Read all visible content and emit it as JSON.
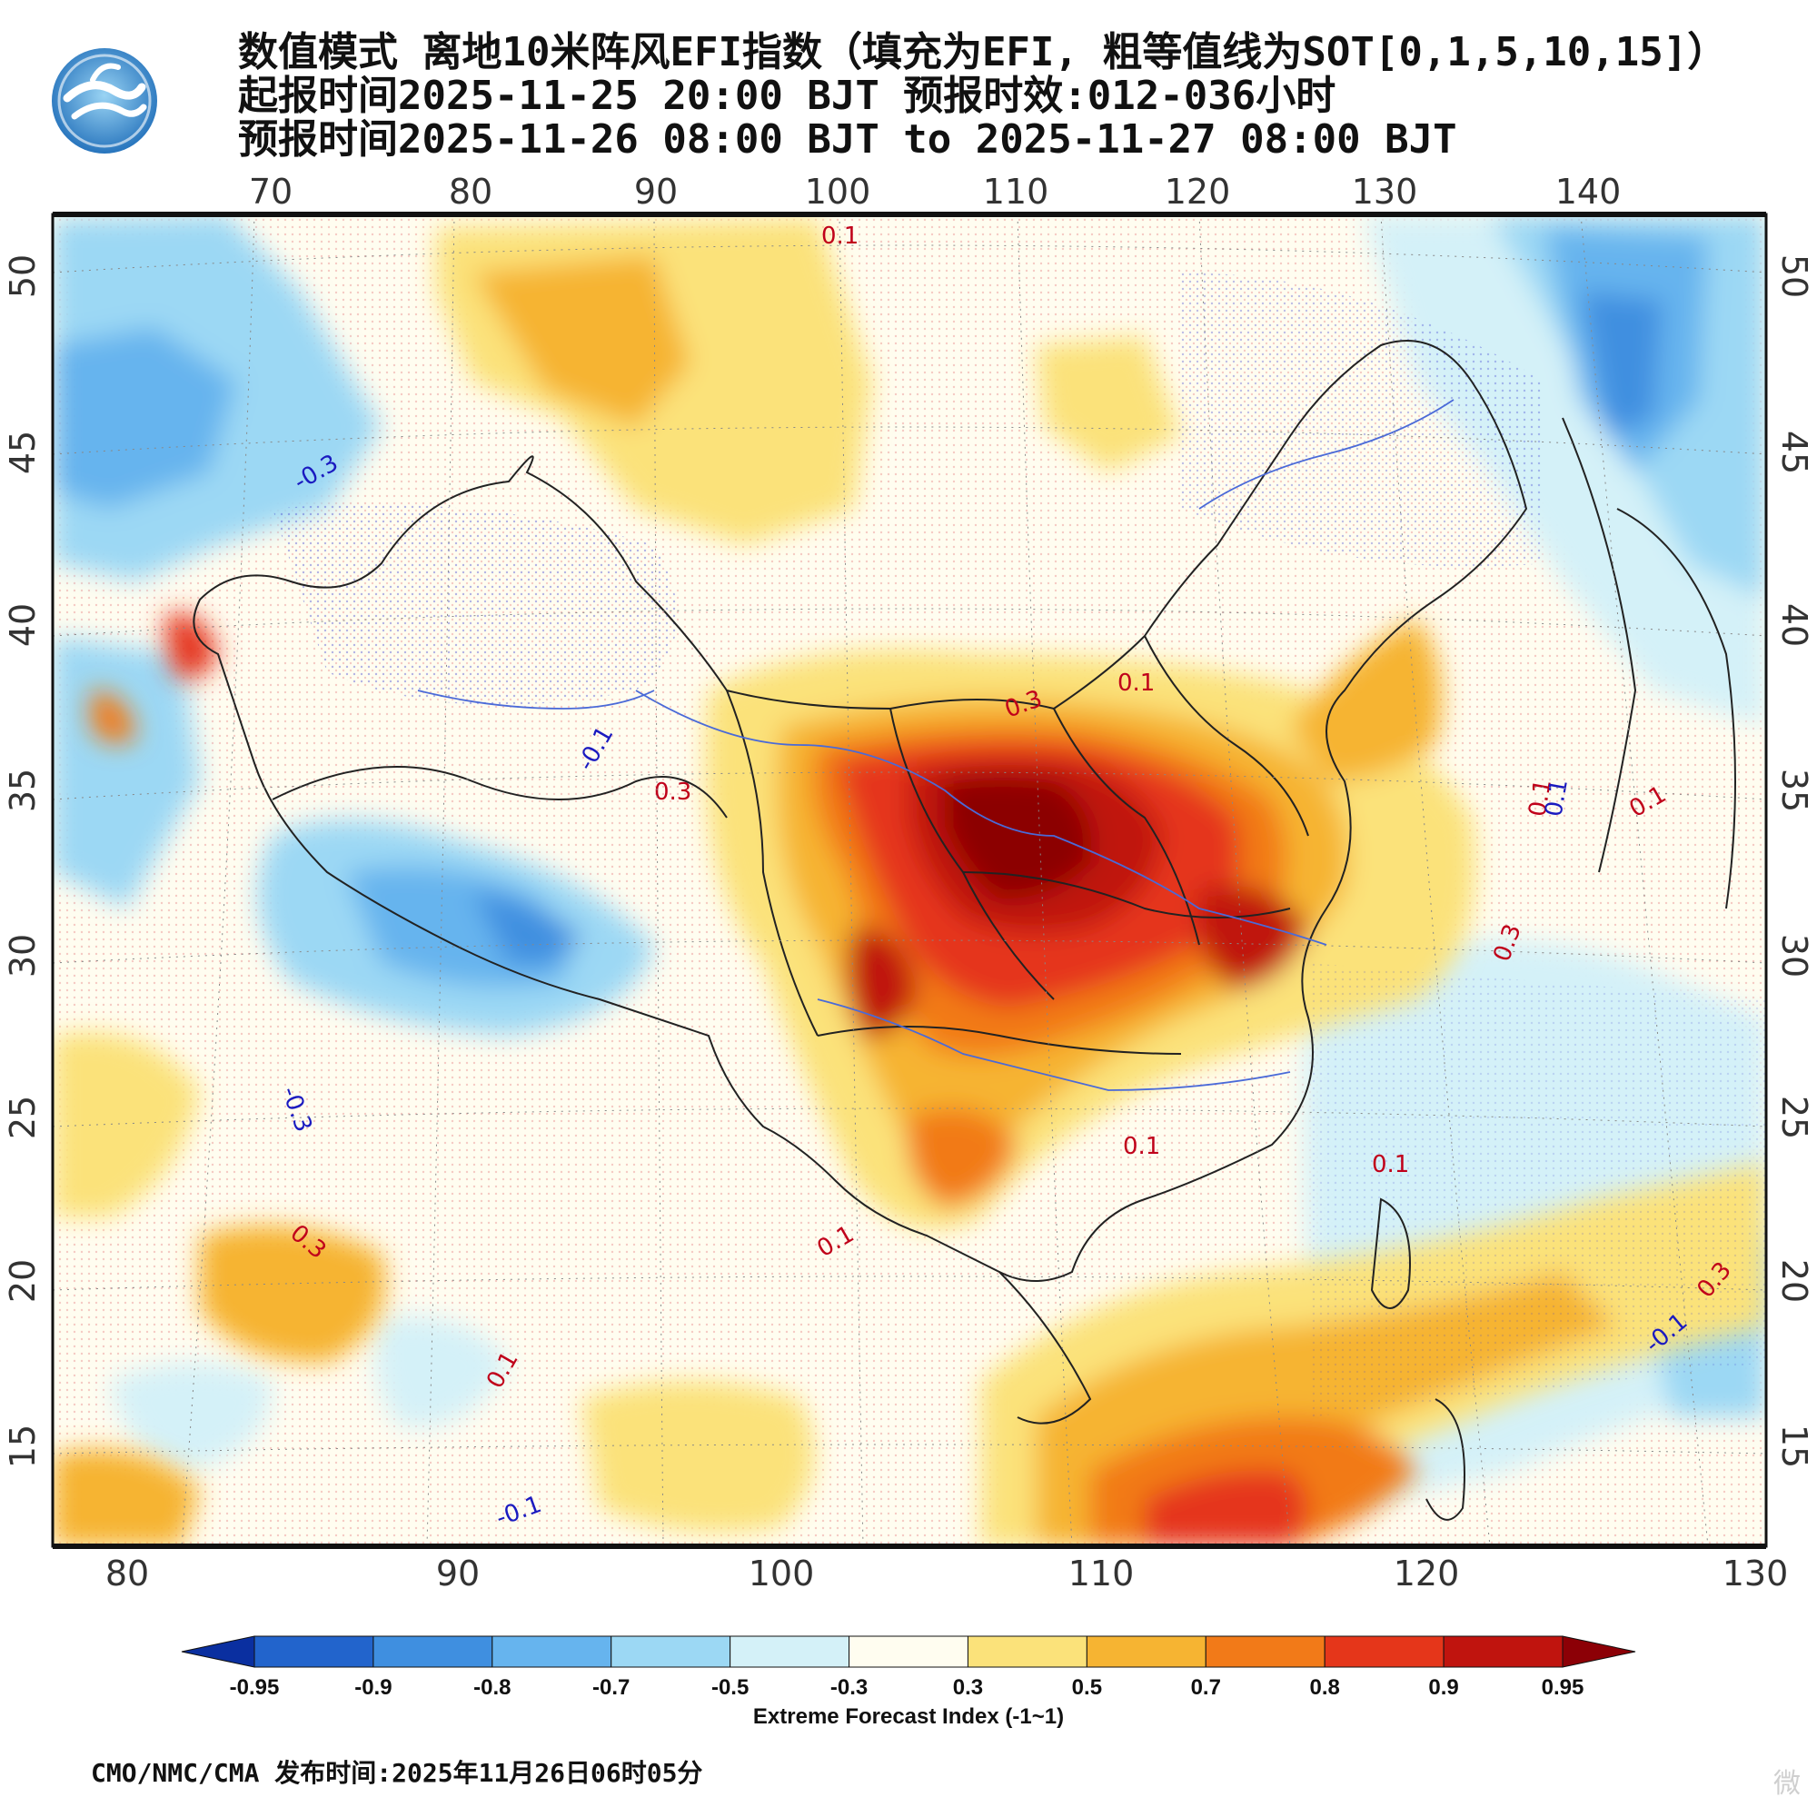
{
  "title": {
    "line1": "数值模式 离地10米阵风EFI指数（填充为EFI, 粗等值线为SOT[0,1,5,10,15]）",
    "line2": "起报时间2025-11-25 20:00 BJT 预报时效:012-036小时",
    "line3": "预报时间2025-11-26 08:00 BJT to 2025-11-27 08:00 BJT"
  },
  "map": {
    "top_lon_ticks": [
      "70",
      "80",
      "90",
      "100",
      "110",
      "120",
      "130",
      "140"
    ],
    "bottom_lon_ticks": [
      "80",
      "90",
      "100",
      "110",
      "120",
      "130"
    ],
    "lat_ticks": [
      "50",
      "45",
      "40",
      "35",
      "30",
      "25",
      "20",
      "15"
    ],
    "contour_labels": [
      {
        "text": "0.1",
        "color": "#c0001a"
      },
      {
        "text": "-0.3",
        "color": "#1a1ac0"
      },
      {
        "text": "0.3",
        "color": "#c0001a"
      },
      {
        "text": "0.1",
        "color": "#c0001a"
      },
      {
        "text": "-0.1",
        "color": "#1a1ac0"
      },
      {
        "text": "0.3",
        "color": "#c0001a"
      },
      {
        "text": "0.1",
        "color": "#c0001a"
      },
      {
        "text": "0.1",
        "color": "#1a1ac0"
      },
      {
        "text": "0.1",
        "color": "#c0001a"
      },
      {
        "text": "0.3",
        "color": "#c0001a"
      },
      {
        "text": "-0.3",
        "color": "#1a1ac0"
      },
      {
        "text": "0.1",
        "color": "#c0001a"
      },
      {
        "text": "0.1",
        "color": "#c0001a"
      },
      {
        "text": "0.3",
        "color": "#c0001a"
      },
      {
        "text": "0.1",
        "color": "#c0001a"
      },
      {
        "text": "0.1",
        "color": "#c0001a"
      },
      {
        "text": "-0.1",
        "color": "#1a1ac0"
      },
      {
        "text": "0.3",
        "color": "#c0001a"
      },
      {
        "text": "-0.1",
        "color": "#1a1ac0"
      }
    ]
  },
  "colorbar": {
    "title": "Extreme Forecast Index (-1~1)",
    "ticks": [
      "-0.95",
      "-0.9",
      "-0.8",
      "-0.7",
      "-0.5",
      "-0.3",
      "0.3",
      "0.5",
      "0.7",
      "0.8",
      "0.9",
      "0.95"
    ],
    "colors": [
      "#0a2fa0",
      "#2264cc",
      "#3f8fe0",
      "#66b4ee",
      "#9cd8f4",
      "#d4f1f8",
      "#fffdf0",
      "#fbe27a",
      "#f6b432",
      "#f27a18",
      "#e5361a",
      "#c0140e",
      "#8c0006"
    ]
  },
  "footer": "CMO/NMC/CMA 发布时间:2025年11月26日06时05分",
  "watermark": "微"
}
